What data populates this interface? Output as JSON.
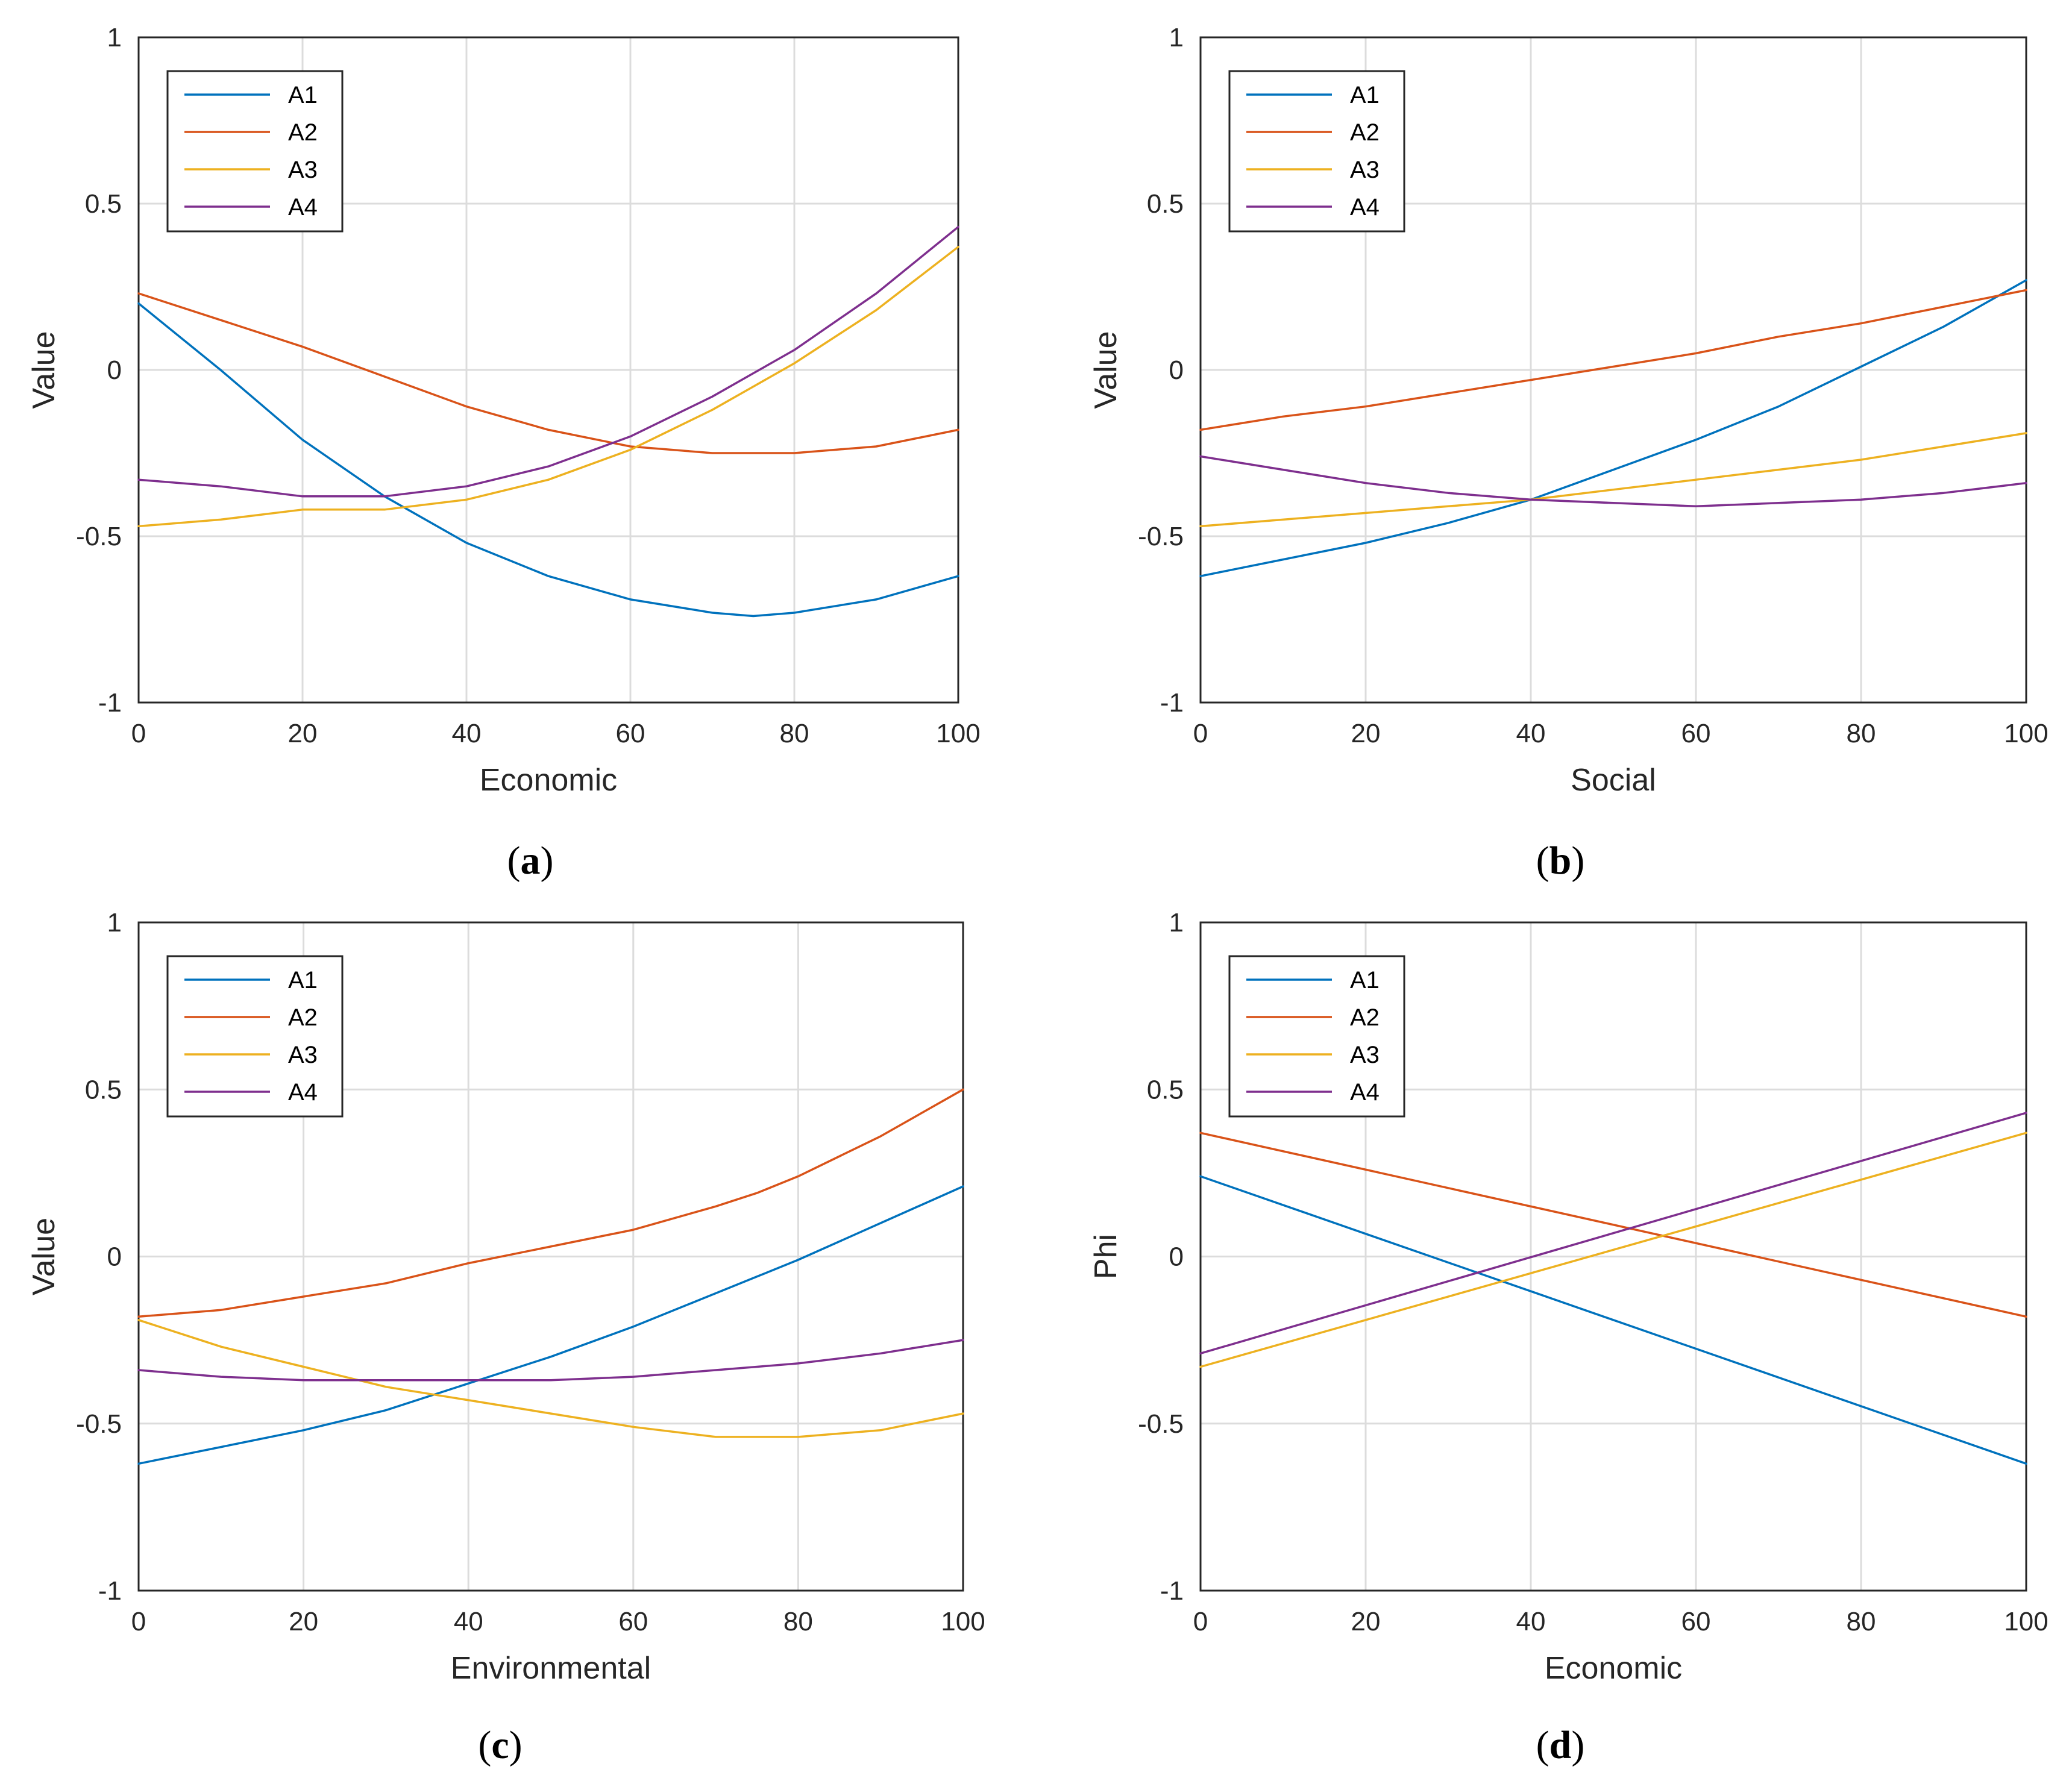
{
  "chart_data": [
    {
      "panel": "(a)",
      "caption_letter": "a",
      "type": "line",
      "title": "",
      "xlabel": "Economic",
      "ylabel": "Value",
      "xlim": [
        0,
        100
      ],
      "ylim": [
        -1,
        1
      ],
      "grid": true,
      "legend_position": "top-left",
      "xticks": [
        "0",
        "20",
        "40",
        "60",
        "80",
        "100"
      ],
      "yticks": [
        "-1",
        "-0.5",
        "0",
        "0.5",
        "1"
      ],
      "x": [
        0,
        10,
        20,
        30,
        40,
        50,
        60,
        70,
        75,
        80,
        90,
        100
      ],
      "series": [
        {
          "name": "A1",
          "color": "#0072BD",
          "values": [
            0.2,
            0.0,
            -0.21,
            -0.38,
            -0.52,
            -0.62,
            -0.69,
            -0.73,
            -0.74,
            -0.73,
            -0.69,
            -0.62
          ]
        },
        {
          "name": "A2",
          "color": "#D95319",
          "values": [
            0.23,
            0.15,
            0.07,
            -0.02,
            -0.11,
            -0.18,
            -0.23,
            -0.25,
            -0.25,
            -0.25,
            -0.23,
            -0.18
          ]
        },
        {
          "name": "A3",
          "color": "#EDB120",
          "values": [
            -0.47,
            -0.45,
            -0.42,
            -0.42,
            -0.39,
            -0.33,
            -0.24,
            -0.12,
            -0.05,
            0.02,
            0.18,
            0.37
          ]
        },
        {
          "name": "A4",
          "color": "#7E2F8E",
          "values": [
            -0.33,
            -0.35,
            -0.38,
            -0.38,
            -0.35,
            -0.29,
            -0.2,
            -0.08,
            -0.01,
            0.06,
            0.23,
            0.43
          ]
        }
      ]
    },
    {
      "panel": "(b)",
      "caption_letter": "b",
      "type": "line",
      "title": "",
      "xlabel": "Social",
      "ylabel": "Value",
      "xlim": [
        0,
        100
      ],
      "ylim": [
        -1,
        1
      ],
      "grid": true,
      "legend_position": "top-left",
      "xticks": [
        "0",
        "20",
        "40",
        "60",
        "80",
        "100"
      ],
      "yticks": [
        "-1",
        "-0.5",
        "0",
        "0.5",
        "1"
      ],
      "x": [
        0,
        10,
        20,
        30,
        40,
        50,
        60,
        70,
        80,
        90,
        100
      ],
      "series": [
        {
          "name": "A1",
          "color": "#0072BD",
          "values": [
            -0.62,
            -0.57,
            -0.52,
            -0.46,
            -0.39,
            -0.3,
            -0.21,
            -0.11,
            0.01,
            0.13,
            0.27
          ]
        },
        {
          "name": "A2",
          "color": "#D95319",
          "values": [
            -0.18,
            -0.14,
            -0.11,
            -0.07,
            -0.03,
            0.01,
            0.05,
            0.1,
            0.14,
            0.19,
            0.24
          ]
        },
        {
          "name": "A3",
          "color": "#EDB120",
          "values": [
            -0.47,
            -0.45,
            -0.43,
            -0.41,
            -0.39,
            -0.36,
            -0.33,
            -0.3,
            -0.27,
            -0.23,
            -0.19
          ]
        },
        {
          "name": "A4",
          "color": "#7E2F8E",
          "values": [
            -0.26,
            -0.3,
            -0.34,
            -0.37,
            -0.39,
            -0.4,
            -0.41,
            -0.4,
            -0.39,
            -0.37,
            -0.34
          ]
        }
      ]
    },
    {
      "panel": "(c)",
      "caption_letter": "c",
      "type": "line",
      "title": "",
      "xlabel": "Environmental",
      "ylabel": "Value",
      "xlim": [
        0,
        100
      ],
      "ylim": [
        -1,
        1
      ],
      "grid": true,
      "legend_position": "top-left",
      "xticks": [
        "0",
        "20",
        "40",
        "60",
        "80",
        "100"
      ],
      "yticks": [
        "-1",
        "-0.5",
        "0",
        "0.5",
        "1"
      ],
      "x": [
        0,
        10,
        20,
        30,
        40,
        50,
        60,
        70,
        75,
        80,
        90,
        100
      ],
      "series": [
        {
          "name": "A1",
          "color": "#0072BD",
          "values": [
            -0.62,
            -0.57,
            -0.52,
            -0.46,
            -0.38,
            -0.3,
            -0.21,
            -0.11,
            -0.06,
            -0.01,
            0.1,
            0.21
          ]
        },
        {
          "name": "A2",
          "color": "#D95319",
          "values": [
            -0.18,
            -0.16,
            -0.12,
            -0.08,
            -0.02,
            0.03,
            0.08,
            0.15,
            0.19,
            0.24,
            0.36,
            0.5
          ]
        },
        {
          "name": "A3",
          "color": "#EDB120",
          "values": [
            -0.19,
            -0.27,
            -0.33,
            -0.39,
            -0.43,
            -0.47,
            -0.51,
            -0.54,
            -0.54,
            -0.54,
            -0.52,
            -0.47
          ]
        },
        {
          "name": "A4",
          "color": "#7E2F8E",
          "values": [
            -0.34,
            -0.36,
            -0.37,
            -0.37,
            -0.37,
            -0.37,
            -0.36,
            -0.34,
            -0.33,
            -0.32,
            -0.29,
            -0.25
          ]
        }
      ]
    },
    {
      "panel": "(d)",
      "caption_letter": "d",
      "type": "line",
      "title": "",
      "xlabel": "Economic",
      "ylabel": "Phi",
      "xlim": [
        0,
        100
      ],
      "ylim": [
        -1,
        1
      ],
      "grid": true,
      "legend_position": "top-left",
      "xticks": [
        "0",
        "20",
        "40",
        "60",
        "80",
        "100"
      ],
      "yticks": [
        "-1",
        "-0.5",
        "0",
        "0.5",
        "1"
      ],
      "x": [
        0,
        100
      ],
      "series": [
        {
          "name": "A1",
          "color": "#0072BD",
          "values": [
            0.24,
            -0.62
          ]
        },
        {
          "name": "A2",
          "color": "#D95319",
          "values": [
            0.37,
            -0.18
          ]
        },
        {
          "name": "A3",
          "color": "#EDB120",
          "values": [
            -0.33,
            0.37
          ]
        },
        {
          "name": "A4",
          "color": "#7E2F8E",
          "values": [
            -0.29,
            0.43
          ]
        }
      ]
    }
  ]
}
